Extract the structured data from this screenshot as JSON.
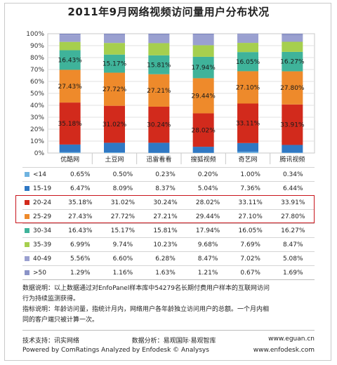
{
  "title": "2011年9月网络视频访问量用户分布状况",
  "chart_data": {
    "type": "bar",
    "stacked": true,
    "title": "2011年9月网络视频访问量用户分布状况",
    "categories": [
      "优酷网",
      "土豆网",
      "迅雷看看",
      "搜狐视频",
      "奇艺网",
      "腾讯视频"
    ],
    "y_ticks": [
      "0%",
      "10%",
      "20%",
      "30%",
      "40%",
      "50%",
      "60%",
      "70%",
      "80%",
      "90%",
      "100%"
    ],
    "ylim": [
      0,
      100
    ],
    "grid": true,
    "series": [
      {
        "name": "<14",
        "color": "#6fb3e0",
        "values": [
          0.65,
          0.5,
          0.23,
          0.2,
          1.0,
          0.34
        ]
      },
      {
        "name": "15-19",
        "color": "#2f78c4",
        "values": [
          6.47,
          8.09,
          8.37,
          5.04,
          7.36,
          6.44
        ]
      },
      {
        "name": "20-24",
        "color": "#d22a1c",
        "values": [
          35.18,
          31.02,
          30.24,
          28.02,
          33.11,
          33.91
        ]
      },
      {
        "name": "25-29",
        "color": "#ee8a2b",
        "values": [
          27.43,
          27.72,
          27.21,
          29.44,
          27.1,
          27.8
        ]
      },
      {
        "name": "30-34",
        "color": "#3fb39a",
        "values": [
          16.43,
          15.17,
          15.81,
          17.94,
          16.05,
          16.27
        ]
      },
      {
        "name": "35-39",
        "color": "#a6cf4e",
        "values": [
          6.99,
          9.74,
          10.23,
          9.68,
          7.69,
          8.47
        ]
      },
      {
        "name": "40-49",
        "color": "#9aa0d0",
        "values": [
          5.56,
          6.6,
          6.28,
          8.47,
          7.02,
          5.08
        ]
      },
      {
        "name": ">50",
        "color": "#8b93c7",
        "values": [
          1.29,
          1.16,
          1.63,
          1.21,
          0.67,
          1.69
        ]
      }
    ],
    "visible_data_labels": [
      "20-24",
      "25-29",
      "30-34"
    ],
    "legend_placement": "data table below chart",
    "highlighted_rows": [
      "20-24",
      "25-29"
    ],
    "highlight_color": "#c8141b"
  },
  "table": {
    "rows": [
      {
        "label": "<14",
        "cells": [
          "0.65%",
          "0.50%",
          "0.23%",
          "0.20%",
          "1.00%",
          "0.34%"
        ]
      },
      {
        "label": "15-19",
        "cells": [
          "6.47%",
          "8.09%",
          "8.37%",
          "5.04%",
          "7.36%",
          "6.44%"
        ]
      },
      {
        "label": "20-24",
        "cells": [
          "35.18%",
          "31.02%",
          "30.24%",
          "28.02%",
          "33.11%",
          "33.91%"
        ]
      },
      {
        "label": "25-29",
        "cells": [
          "27.43%",
          "27.72%",
          "27.21%",
          "29.44%",
          "27.10%",
          "27.80%"
        ]
      },
      {
        "label": "30-34",
        "cells": [
          "16.43%",
          "15.17%",
          "15.81%",
          "17.94%",
          "16.05%",
          "16.27%"
        ]
      },
      {
        "label": "35-39",
        "cells": [
          "6.99%",
          "9.74%",
          "10.23%",
          "9.68%",
          "7.69%",
          "8.47%"
        ]
      },
      {
        "label": "40-49",
        "cells": [
          "5.56%",
          "6.60%",
          "6.28%",
          "8.47%",
          "7.02%",
          "5.08%"
        ]
      },
      {
        "label": ">50",
        "cells": [
          "1.29%",
          "1.16%",
          "1.63%",
          "1.21%",
          "0.67%",
          "1.69%"
        ]
      }
    ]
  },
  "notes": {
    "line1": "数据说明：以上数据通过对EnfoPanel样本库中54279名长期付费用户样本的互联网访问",
    "line2": "行为持续监测获得。",
    "line3": "指标说明：年龄访问量，指统计月内，网络用户各年龄独立访问用户的总额。一个月内相",
    "line4": "同的客户端只被计算一次。"
  },
  "footer": {
    "support": "技术支持：讯实网络",
    "analysis": "数据分析：易观国际·易观智库",
    "url1": "www.eguan.cn",
    "powered": "Powered by ComRatings  Analyzed by Enfodesk © Analysys",
    "url2": "www.enfodesk.com"
  }
}
